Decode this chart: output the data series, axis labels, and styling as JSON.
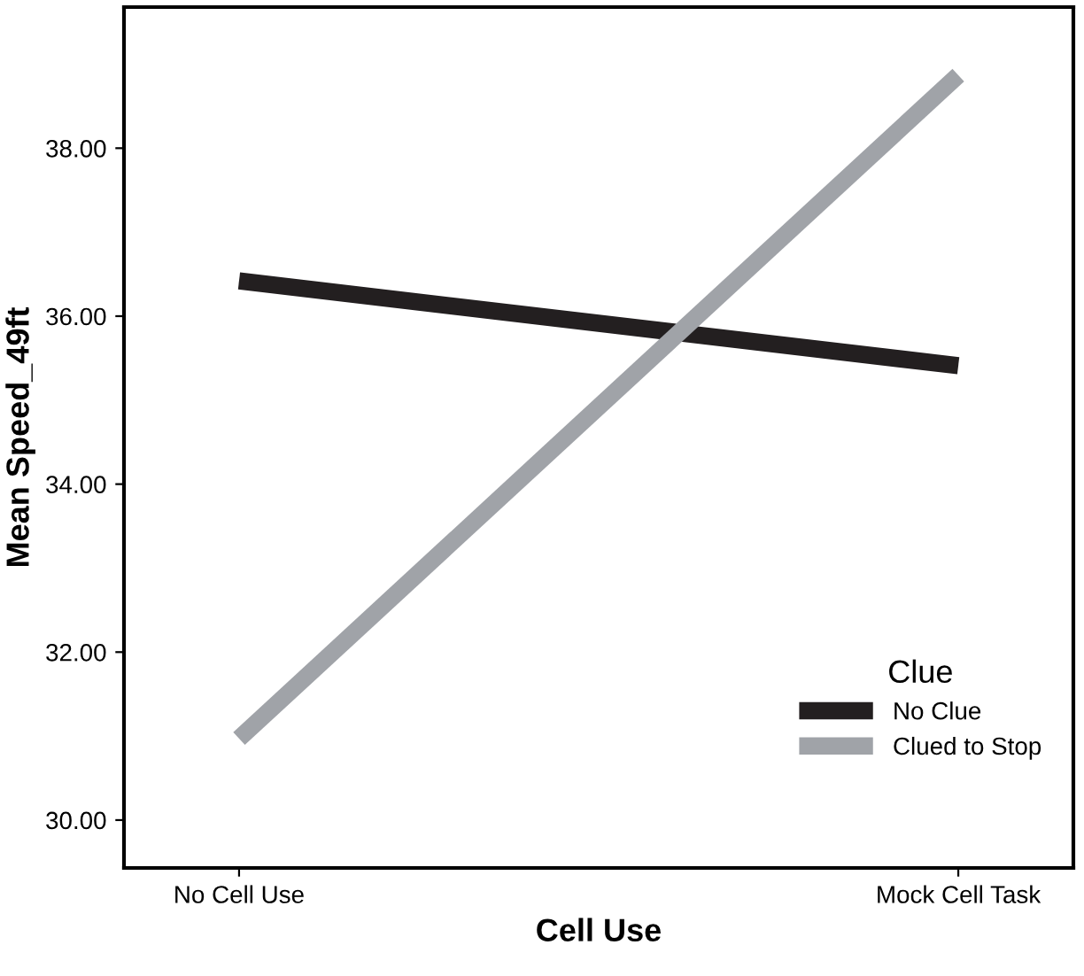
{
  "chart_data": {
    "type": "line",
    "xlabel": "Cell Use",
    "ylabel": "Mean Speed_49ft",
    "legend_title": "Clue",
    "categories": [
      "No Cell Use",
      "Mock Cell Task"
    ],
    "series": [
      {
        "name": "No Clue",
        "color": "#231f20",
        "values": [
          36.42,
          35.41
        ]
      },
      {
        "name": "Clued to Stop",
        "color": "#a0a3a8",
        "values": [
          30.97,
          38.87
        ]
      }
    ],
    "ylim": [
      29.43,
      39.68
    ],
    "yticks": [
      {
        "value": 30,
        "label": "30.00"
      },
      {
        "value": 32,
        "label": "32.00"
      },
      {
        "value": 34,
        "label": "34.00"
      },
      {
        "value": 36,
        "label": "36.00"
      },
      {
        "value": 38,
        "label": "38.00"
      }
    ],
    "grid": false,
    "legend": "bottom right",
    "marker": "none",
    "line_style": "solid"
  }
}
